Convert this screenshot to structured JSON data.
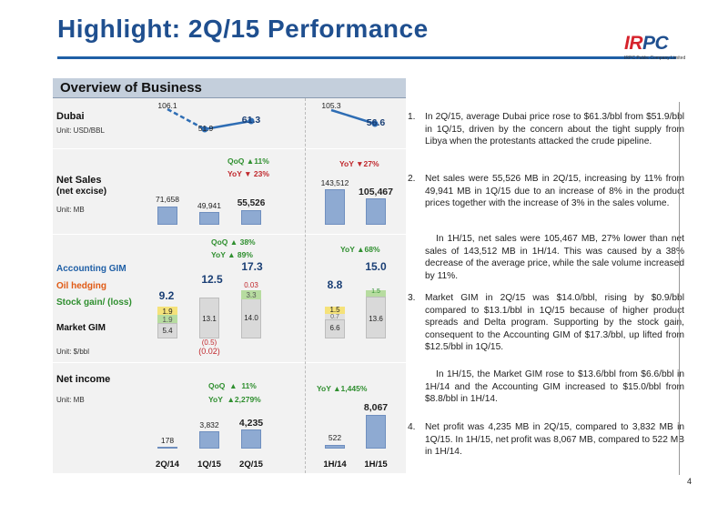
{
  "header": {
    "title": "Highlight: 2Q/15 Performance"
  },
  "logo": {
    "mark_ir": "IR",
    "mark_pc": "PC",
    "subtitle": "IRPC Public Company Limited"
  },
  "section": {
    "title": "Overview of Business"
  },
  "dubai": {
    "title": "Dubai",
    "unit": "Unit: USD/BBL",
    "q_values": [
      "106.1",
      "51.9",
      "61.3"
    ],
    "h_values": [
      "105.3",
      "56.6"
    ]
  },
  "net_sales": {
    "title": "Net Sales",
    "subtitle": "(net excise)",
    "unit": "Unit: MB",
    "q_values": [
      "71,658",
      "49,941",
      "55,526"
    ],
    "h_values": [
      "143,512",
      "105,467"
    ],
    "qoq": "QoQ",
    "qoq_val": "11%",
    "yoy": "YoY",
    "yoy_val": "23%",
    "h_yoy": "YoY",
    "h_yoy_val": "27%"
  },
  "gim": {
    "accounting_label": "Accounting GIM",
    "hedging_label": "Oil hedging",
    "stock_label": "Stock gain/ (loss)",
    "market_label": "Market GIM",
    "unit": "Unit: $/bbl",
    "qoq": "QoQ",
    "qoq_val": "38%",
    "yoy": "YoY",
    "yoy_val": "89%",
    "h_yoy": "YoY",
    "h_yoy_val": "68%",
    "totals_q": [
      "9.2",
      "12.5",
      "17.3"
    ],
    "totals_h": [
      "8.8",
      "15.0"
    ],
    "market_q": [
      "5.4",
      "13.1",
      "14.0"
    ],
    "market_h": [
      "6.6",
      "13.6"
    ],
    "stock_q": [
      "1.9",
      "(0.5)",
      "3.3"
    ],
    "hedge_q": [
      "1.9",
      "(0.02)",
      "0.03"
    ],
    "stock_h": [
      "0.7",
      "1.5"
    ],
    "hedge_h": [
      "1.5"
    ]
  },
  "net_income": {
    "title": "Net income",
    "unit": "Unit: MB",
    "q_values": [
      "178",
      "3,832",
      "4,235"
    ],
    "h_values": [
      "522",
      "8,067"
    ],
    "qoq": "QoQ",
    "qoq_val": "11%",
    "yoy": "YoY",
    "yoy_val": "2,279%",
    "h_yoy": "YoY",
    "h_yoy_val": "1,445%"
  },
  "x_labels": [
    "2Q/14",
    "1Q/15",
    "2Q/15",
    "1H/14",
    "1H/15"
  ],
  "points": [
    {
      "n": "1.",
      "text": "In 2Q/15, average Dubai price rose to $61.3/bbl from $51.9/bbl in 1Q/15, driven by the concern about the tight supply from Libya when the protestants attacked the crude pipeline."
    },
    {
      "n": "2.",
      "text": "Net sales were 55,526 MB in 2Q/15, increasing by 11% from 49,941 MB in 1Q/15 due to an increase of 8% in the product prices together with the increase of 3% in the sales volume."
    },
    {
      "n": "",
      "text": "In 1H/15, net sales were 105,467 MB, 27% lower than net sales of 143,512 MB in 1H/14. This was caused by a 38% decrease of the average price, while the sale volume increased by 11%."
    },
    {
      "n": "3.",
      "text": "Market GIM in 2Q/15 was $14.0/bbl, rising by $0.9/bbl compared to $13.1/bbl in 1Q/15 because of higher product spreads and Delta program. Supporting by the stock gain, consequent to the Accounting GIM of $17.3/bbl, up lifted from $12.5/bbl in 1Q/15."
    },
    {
      "n": "",
      "text": "In 1H/15, the Market GIM rose to $13.6/bbl from $6.6/bbl in 1H/14 and the Accounting GIM increased to $15.0/bbl from $8.8/bbl in 1H/14."
    },
    {
      "n": "4.",
      "text": "Net profit was 4,235 MB in 2Q/15, compared to 3,832 MB in 1Q/15. In 1H/15, net profit was 8,067 MB, compared to 522 MB in 1H/14."
    }
  ],
  "page_number": "4"
}
